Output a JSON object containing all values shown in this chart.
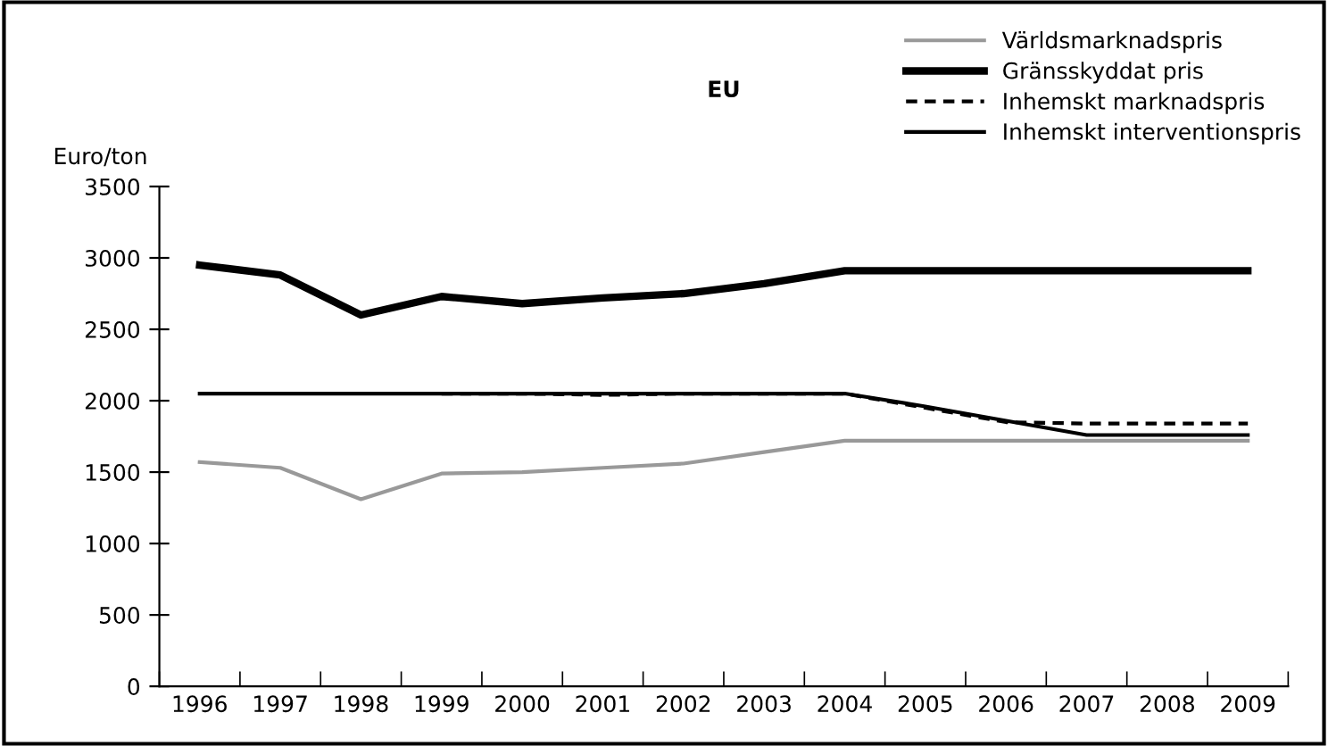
{
  "chart_data": {
    "type": "line",
    "title": "EU",
    "ylabel": "Euro/ton",
    "categories": [
      "1996",
      "1997",
      "1998",
      "1999",
      "2000",
      "2001",
      "2002",
      "2003",
      "2004",
      "2005",
      "2006",
      "2007",
      "2008",
      "2009"
    ],
    "series": [
      {
        "name": "Världsmarknadspris",
        "color": "#999999",
        "line_style": "solid",
        "values": [
          1570,
          1530,
          1310,
          1490,
          1500,
          1530,
          1560,
          1640,
          1720,
          1720,
          1720,
          1720,
          1720,
          1720
        ]
      },
      {
        "name": "Gränsskyddat pris",
        "color": "#000000",
        "line_style": "solid",
        "values": [
          2950,
          2880,
          2600,
          2730,
          2680,
          2720,
          2750,
          2820,
          2910,
          2910,
          2910,
          2910,
          2910,
          2910
        ]
      },
      {
        "name": "Inhemskt marknadspris",
        "color": "#000000",
        "line_style": "dashed",
        "values": [
          null,
          null,
          null,
          2050,
          2050,
          2040,
          2050,
          2050,
          2050,
          1950,
          1850,
          1840,
          1840,
          1840
        ]
      },
      {
        "name": "Inhemskt interventionspris",
        "color": "#000000",
        "line_style": "solid",
        "values": [
          2050,
          2050,
          2050,
          2050,
          2050,
          2050,
          2050,
          2050,
          2050,
          1960,
          1860,
          1760,
          1760,
          1760
        ]
      }
    ],
    "ylim": [
      0,
      3500
    ],
    "yticks": [
      0,
      500,
      1000,
      1500,
      2000,
      2500,
      3000,
      3500
    ],
    "grid": false,
    "legend": "top right",
    "marker": "none"
  }
}
